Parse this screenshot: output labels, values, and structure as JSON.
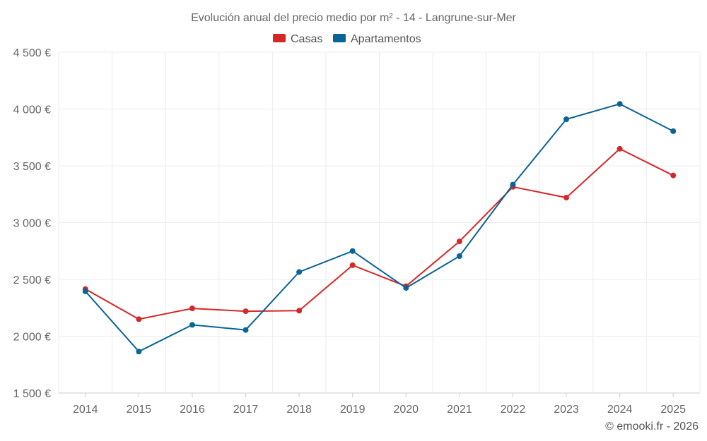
{
  "chart_data": {
    "type": "line",
    "title": "Evolución anual del precio medio por m² - 14 - Langrune-sur-Mer",
    "categories": [
      "2014",
      "2015",
      "2016",
      "2017",
      "2018",
      "2019",
      "2020",
      "2021",
      "2022",
      "2023",
      "2024",
      "2025"
    ],
    "y_ticks": [
      "4 500 €",
      "4 000 €",
      "3 500 €",
      "3 000 €",
      "2 500 €",
      "2 000 €",
      "1 500 €"
    ],
    "ylim": [
      1500,
      4500
    ],
    "series": [
      {
        "name": "Casas",
        "color": "#d62728",
        "values": [
          2415,
          2150,
          2245,
          2220,
          2225,
          2625,
          2440,
          2835,
          3315,
          3220,
          3650,
          3415
        ]
      },
      {
        "name": "Apartamentos",
        "color": "#0a6496",
        "values": [
          2395,
          1865,
          2100,
          2055,
          2565,
          2750,
          2425,
          2705,
          3335,
          3910,
          4045,
          3805
        ]
      }
    ],
    "credit": "© emooki.fr - 2026"
  }
}
